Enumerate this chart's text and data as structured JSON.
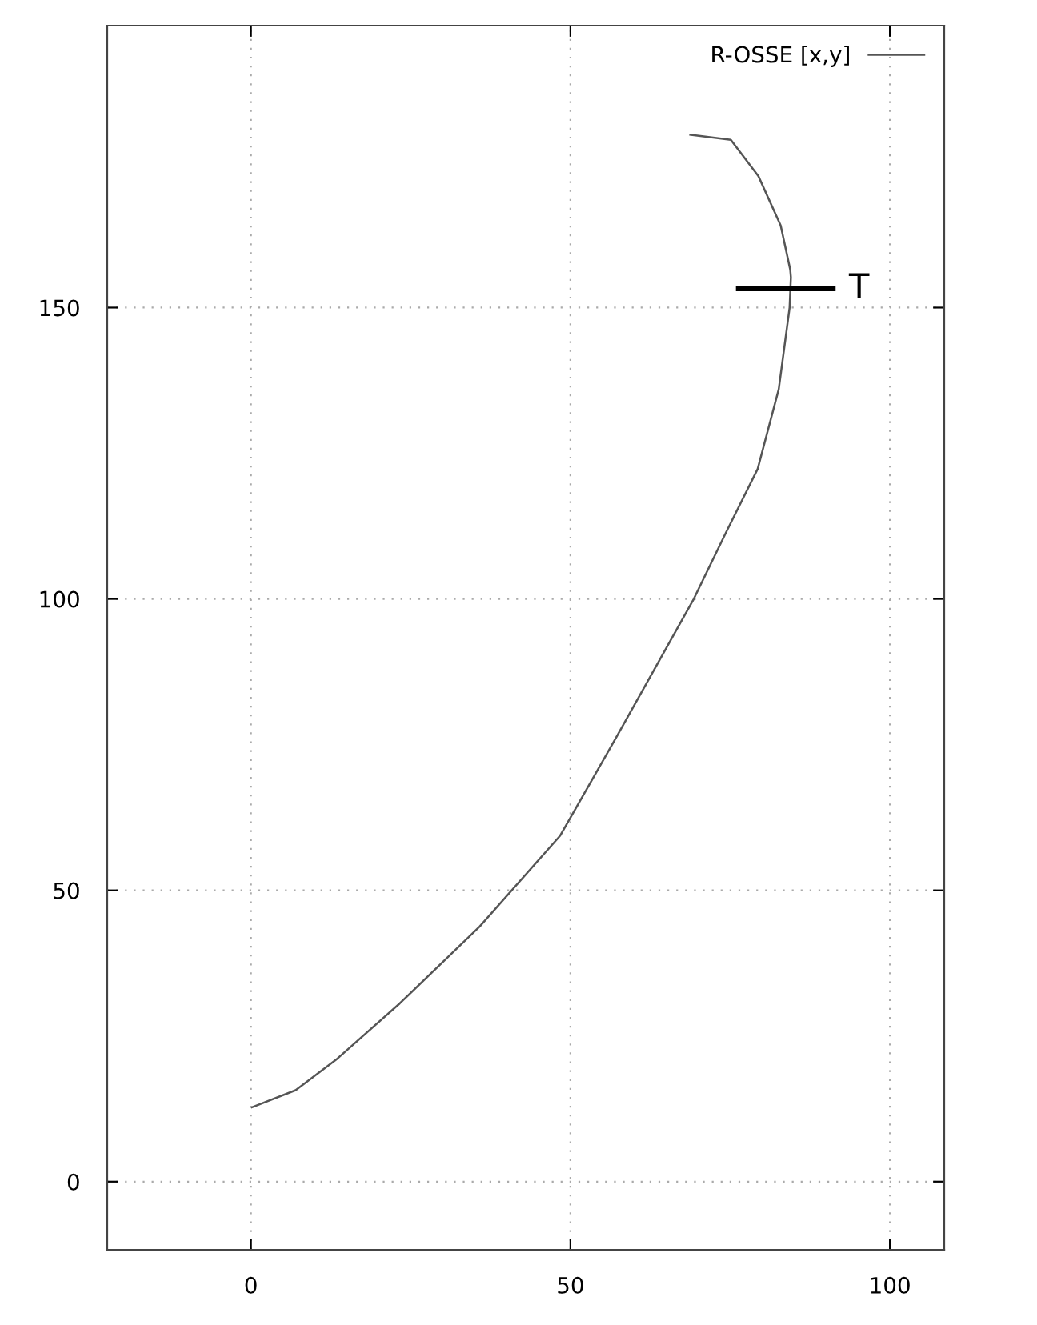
{
  "chart_data": {
    "type": "line",
    "series": [
      {
        "name": "R-OSSE [x,y]",
        "color": "#555555",
        "x": [
          0,
          7,
          13.3,
          23.3,
          35.8,
          48.4,
          57.3,
          69.3,
          74.3,
          79.3,
          82.6,
          84.3,
          84.5,
          84.4,
          82.9,
          79.4,
          75.1,
          68.6
        ],
        "values": [
          12.7,
          15.7,
          20.9,
          30.6,
          43.8,
          59.4,
          76.5,
          100,
          111.3,
          122.3,
          136,
          150,
          155.2,
          156.5,
          164.1,
          172.6,
          178.8,
          179.7
        ]
      },
      {
        "type": "line",
        "color": "#000000",
        "x": [
          75.9,
          91.5
        ],
        "values": [
          153.3,
          153.3
        ]
      }
    ],
    "annotations": [
      {
        "text": "T",
        "x": 91.5,
        "y": 153.3
      }
    ],
    "xlim": [
      -22.5,
      108.5
    ],
    "xticks": [
      0,
      50,
      100
    ],
    "ylim": [
      -11.7,
      198.4
    ],
    "yticks": [
      0,
      50,
      100,
      150
    ],
    "grid": true,
    "legend": "top right"
  }
}
